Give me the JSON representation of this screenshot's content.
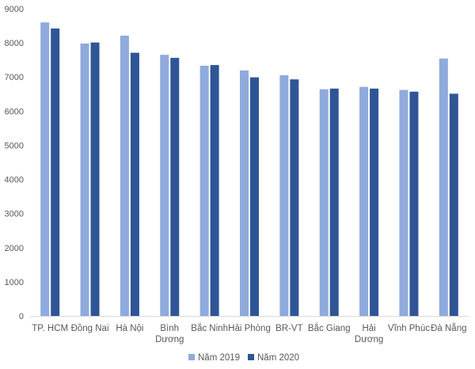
{
  "chart_data": {
    "type": "bar",
    "categories": [
      [
        "TP. HCM"
      ],
      [
        "Đồng Nai"
      ],
      [
        "Hà Nội"
      ],
      [
        "Bình",
        "Dương"
      ],
      [
        "Bắc Ninh"
      ],
      [
        "Hải Phòng"
      ],
      [
        "BR-VT"
      ],
      [
        "Bắc Giang"
      ],
      [
        "Hải",
        "Dương"
      ],
      [
        "Vĩnh Phúc"
      ],
      [
        "Đà Nẵng"
      ]
    ],
    "series": [
      {
        "name": "Năm 2019",
        "color": "#8FAADC",
        "values": [
          8600,
          7980,
          8210,
          7650,
          7330,
          7190,
          7050,
          6640,
          6710,
          6620,
          7540
        ]
      },
      {
        "name": "Năm 2020",
        "color": "#2F5597",
        "values": [
          8420,
          8010,
          7710,
          7560,
          7350,
          6990,
          6930,
          6660,
          6660,
          6570,
          6510
        ]
      }
    ],
    "ylim": [
      0,
      9000
    ],
    "yticks": [
      0,
      1000,
      2000,
      3000,
      4000,
      5000,
      6000,
      7000,
      8000,
      9000
    ],
    "grid": false,
    "legend_position": "bottom-center",
    "title": "",
    "xlabel": "",
    "ylabel": ""
  }
}
